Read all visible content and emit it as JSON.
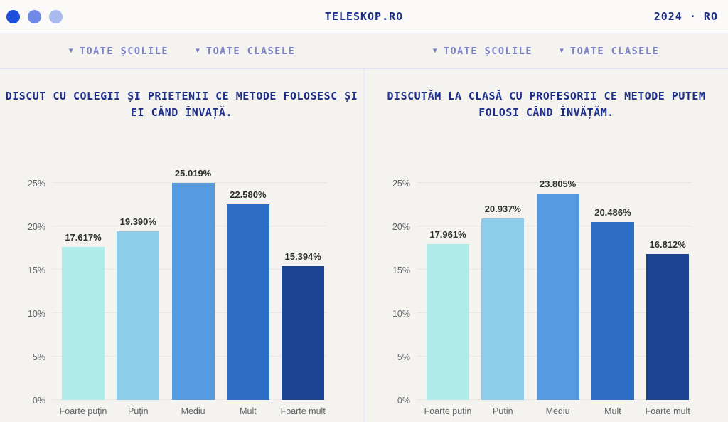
{
  "header": {
    "title": "TELESKOP.RO",
    "edition": "2024 · RO",
    "logo_dot_colors": [
      "#1d4edb",
      "#7089e6",
      "#aab9ee"
    ]
  },
  "filters": {
    "dropdown_icon": "▼",
    "schools_label": "TOATE ȘCOLILE",
    "classes_label": "TOATE CLASELE"
  },
  "colors": {
    "page_bg": "#f4f3f0",
    "header_bg": "#fbfaf8",
    "border": "#e1e4f2",
    "divider": "#e8eaf6",
    "navy_text": "#1e2f87",
    "filter_text": "#7b81c9",
    "gridline": "#e9e7e3",
    "value_label_text": "#2e2e2e",
    "axis_label_text": "#5f6368",
    "bar_palette": [
      "#aeebe9",
      "#8cceea",
      "#569be2",
      "#2f6ec6",
      "#1c4292"
    ]
  },
  "chart_data": [
    {
      "type": "bar",
      "title": "DISCUT CU COLEGII ȘI PRIETENII CE METODE FOLOSESC ȘI EI CÂND ÎNVAȚĂ.",
      "categories": [
        "Foarte puțin",
        "Puțin",
        "Mediu",
        "Mult",
        "Foarte mult"
      ],
      "values": [
        17.617,
        19.39,
        25.019,
        22.58,
        15.394
      ],
      "value_labels": [
        "17.617%",
        "19.390%",
        "25.019%",
        "22.580%",
        "15.394%"
      ],
      "xlabel": "",
      "ylabel": "",
      "ylim": [
        0,
        25.5
      ],
      "yticks": [
        0,
        5,
        10,
        15,
        20,
        25
      ],
      "ytick_labels": [
        "0%",
        "5%",
        "10%",
        "15%",
        "20%",
        "25%"
      ],
      "grid": true,
      "legend": "none"
    },
    {
      "type": "bar",
      "title": "DISCUTĂM LA CLASĂ CU PROFESORII CE METODE PUTEM FOLOSI CÂND ÎNVĂȚĂM.",
      "categories": [
        "Foarte puțin",
        "Puțin",
        "Mediu",
        "Mult",
        "Foarte mult"
      ],
      "values": [
        17.961,
        20.937,
        23.805,
        20.486,
        16.812
      ],
      "value_labels": [
        "17.961%",
        "20.937%",
        "23.805%",
        "20.486%",
        "16.812%"
      ],
      "xlabel": "",
      "ylabel": "",
      "ylim": [
        0,
        25.5
      ],
      "yticks": [
        0,
        5,
        10,
        15,
        20,
        25
      ],
      "ytick_labels": [
        "0%",
        "5%",
        "10%",
        "15%",
        "20%",
        "25%"
      ],
      "grid": true,
      "legend": "none"
    }
  ]
}
